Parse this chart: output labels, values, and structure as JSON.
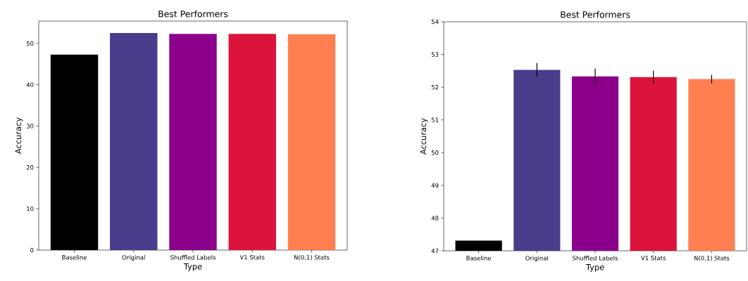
{
  "chart_data": [
    {
      "type": "bar",
      "title": "Best Performers",
      "xlabel": "Type",
      "ylabel": "Accuracy",
      "categories": [
        "Baseline",
        "Original",
        "Shuffled Labels",
        "V1 Stats",
        "N(0,1) Stats"
      ],
      "values": [
        47.3,
        52.5,
        52.3,
        52.3,
        52.2
      ],
      "colors": [
        "#000000",
        "#483d8b",
        "#8b008b",
        "#dc143c",
        "#ff7f50"
      ],
      "ylim": [
        0,
        55.4
      ],
      "yticks": [
        0,
        10,
        20,
        30,
        40,
        50
      ]
    },
    {
      "type": "bar",
      "title": "Best Performers",
      "xlabel": "Type",
      "ylabel": "Accuracy",
      "categories": [
        "Baseline",
        "Original",
        "Shuffled Labels",
        "V1 Stats",
        "N(0,1) Stats"
      ],
      "values": [
        47.31,
        52.53,
        52.33,
        52.31,
        52.25
      ],
      "colors": [
        "#000000",
        "#483d8b",
        "#8b008b",
        "#dc143c",
        "#ff7f50"
      ],
      "errors": [
        null,
        0.21,
        0.24,
        0.19,
        0.13
      ],
      "ylim": [
        47,
        54
      ],
      "yticks": [
        47,
        48,
        49,
        50,
        51,
        52,
        53,
        54
      ]
    }
  ]
}
